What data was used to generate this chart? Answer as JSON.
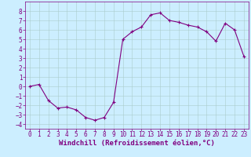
{
  "xlabel": "Windchill (Refroidissement éolien,°C)",
  "x": [
    0,
    1,
    2,
    3,
    4,
    5,
    6,
    7,
    8,
    9,
    10,
    11,
    12,
    13,
    14,
    15,
    16,
    17,
    18,
    19,
    20,
    21,
    22,
    23
  ],
  "y": [
    0.0,
    0.2,
    -1.5,
    -2.3,
    -2.2,
    -2.5,
    -3.3,
    -3.6,
    -3.3,
    -1.7,
    5.0,
    5.8,
    6.3,
    7.6,
    7.8,
    7.0,
    6.8,
    6.5,
    6.3,
    5.8,
    4.8,
    6.7,
    6.0,
    3.2
  ],
  "line_color": "#800080",
  "marker": "+",
  "marker_size": 3.5,
  "marker_linewidth": 0.8,
  "bg_color": "#cceeff",
  "grid_color": "#aacccc",
  "ylim": [
    -4.5,
    9.0
  ],
  "xlim": [
    -0.5,
    23.5
  ],
  "yticks": [
    -4,
    -3,
    -2,
    -1,
    0,
    1,
    2,
    3,
    4,
    5,
    6,
    7,
    8
  ],
  "xticks": [
    0,
    1,
    2,
    3,
    4,
    5,
    6,
    7,
    8,
    9,
    10,
    11,
    12,
    13,
    14,
    15,
    16,
    17,
    18,
    19,
    20,
    21,
    22,
    23
  ],
  "tick_color": "#800080",
  "label_color": "#800080",
  "label_fontsize": 6.5,
  "tick_fontsize": 5.5,
  "linewidth": 0.8
}
